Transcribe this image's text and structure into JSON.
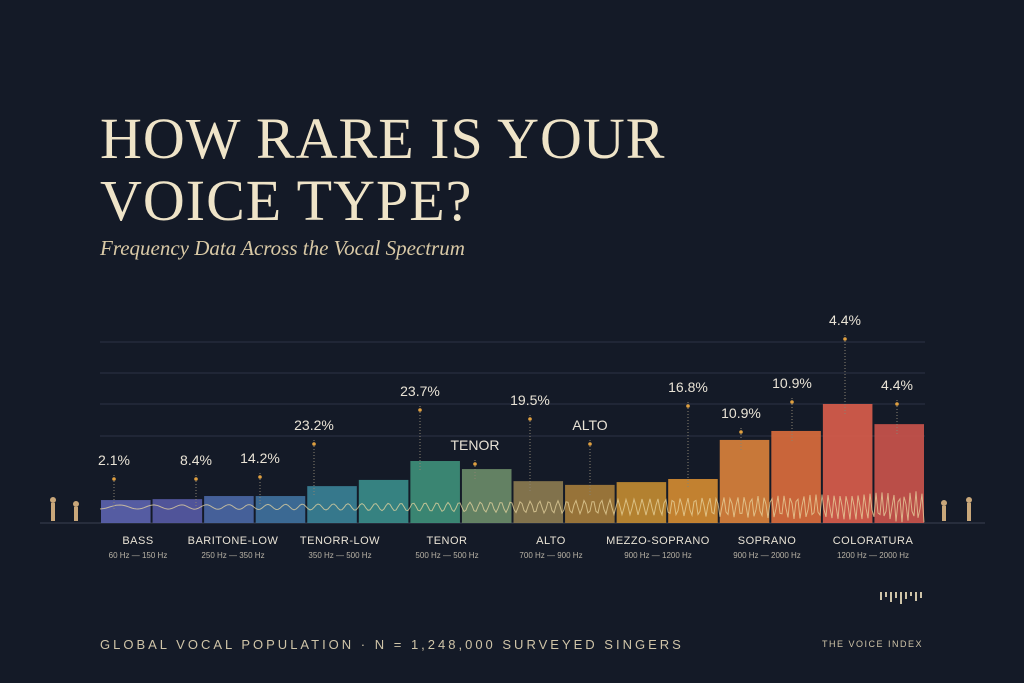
{
  "chart_data": {
    "type": "bar",
    "title_line1": "HOW RARE IS YOUR",
    "title_line2": "VOICE TYPE?",
    "subtitle": "Frequency Data Across the Vocal Spectrum",
    "values": [
      0.74,
      0.77,
      0.87,
      0.87,
      1.19,
      1.39,
      2.0,
      1.74,
      1.35,
      1.23,
      1.32,
      1.42,
      2.68,
      2.97,
      3.84,
      3.19
    ],
    "colors": [
      "#5b62ad",
      "#5659a3",
      "#4a66a3",
      "#3f709c",
      "#3a8095",
      "#3a8b89",
      "#3e8e78",
      "#6a8a68",
      "#8b7a4f",
      "#a37b3b",
      "#c18a31",
      "#d18a31",
      "#d8803b",
      "#d96b3c",
      "#d85c4b",
      "#c9524b"
    ],
    "ylim": [
      0,
      5.84
    ],
    "annotations": [
      "2.1%",
      "8.4%",
      "14.2%",
      "23.2%",
      "23.7%",
      "TENOR",
      "19.5%",
      "ALTO",
      "16.8%",
      "10.9%",
      "10.9%",
      "4.4%",
      "4.4%"
    ],
    "groups": [
      {
        "name": "BASS",
        "range": "60 Hz — 150 Hz"
      },
      {
        "name": "BARITONE-LOW",
        "range": "250 Hz — 350 Hz"
      },
      {
        "name": "TENORR-LOW",
        "range": "350 Hz — 500 Hz"
      },
      {
        "name": "TENOR",
        "range": "500 Hz — 500 Hz"
      },
      {
        "name": "ALTO",
        "range": "700 Hz — 900 Hz"
      },
      {
        "name": "MEZZO-SOPRANO",
        "range": "900 Hz — 1200 Hz"
      },
      {
        "name": "SOPRANO",
        "range": "900 Hz — 2000 Hz"
      },
      {
        "name": "COLORATURA",
        "range": "1200 Hz — 2000 Hz"
      }
    ],
    "footer": "GLOBAL VOCAL POPULATION · N = 1,248,000 SURVEYED SINGERS",
    "brand": "THE VOICE INDEX"
  }
}
